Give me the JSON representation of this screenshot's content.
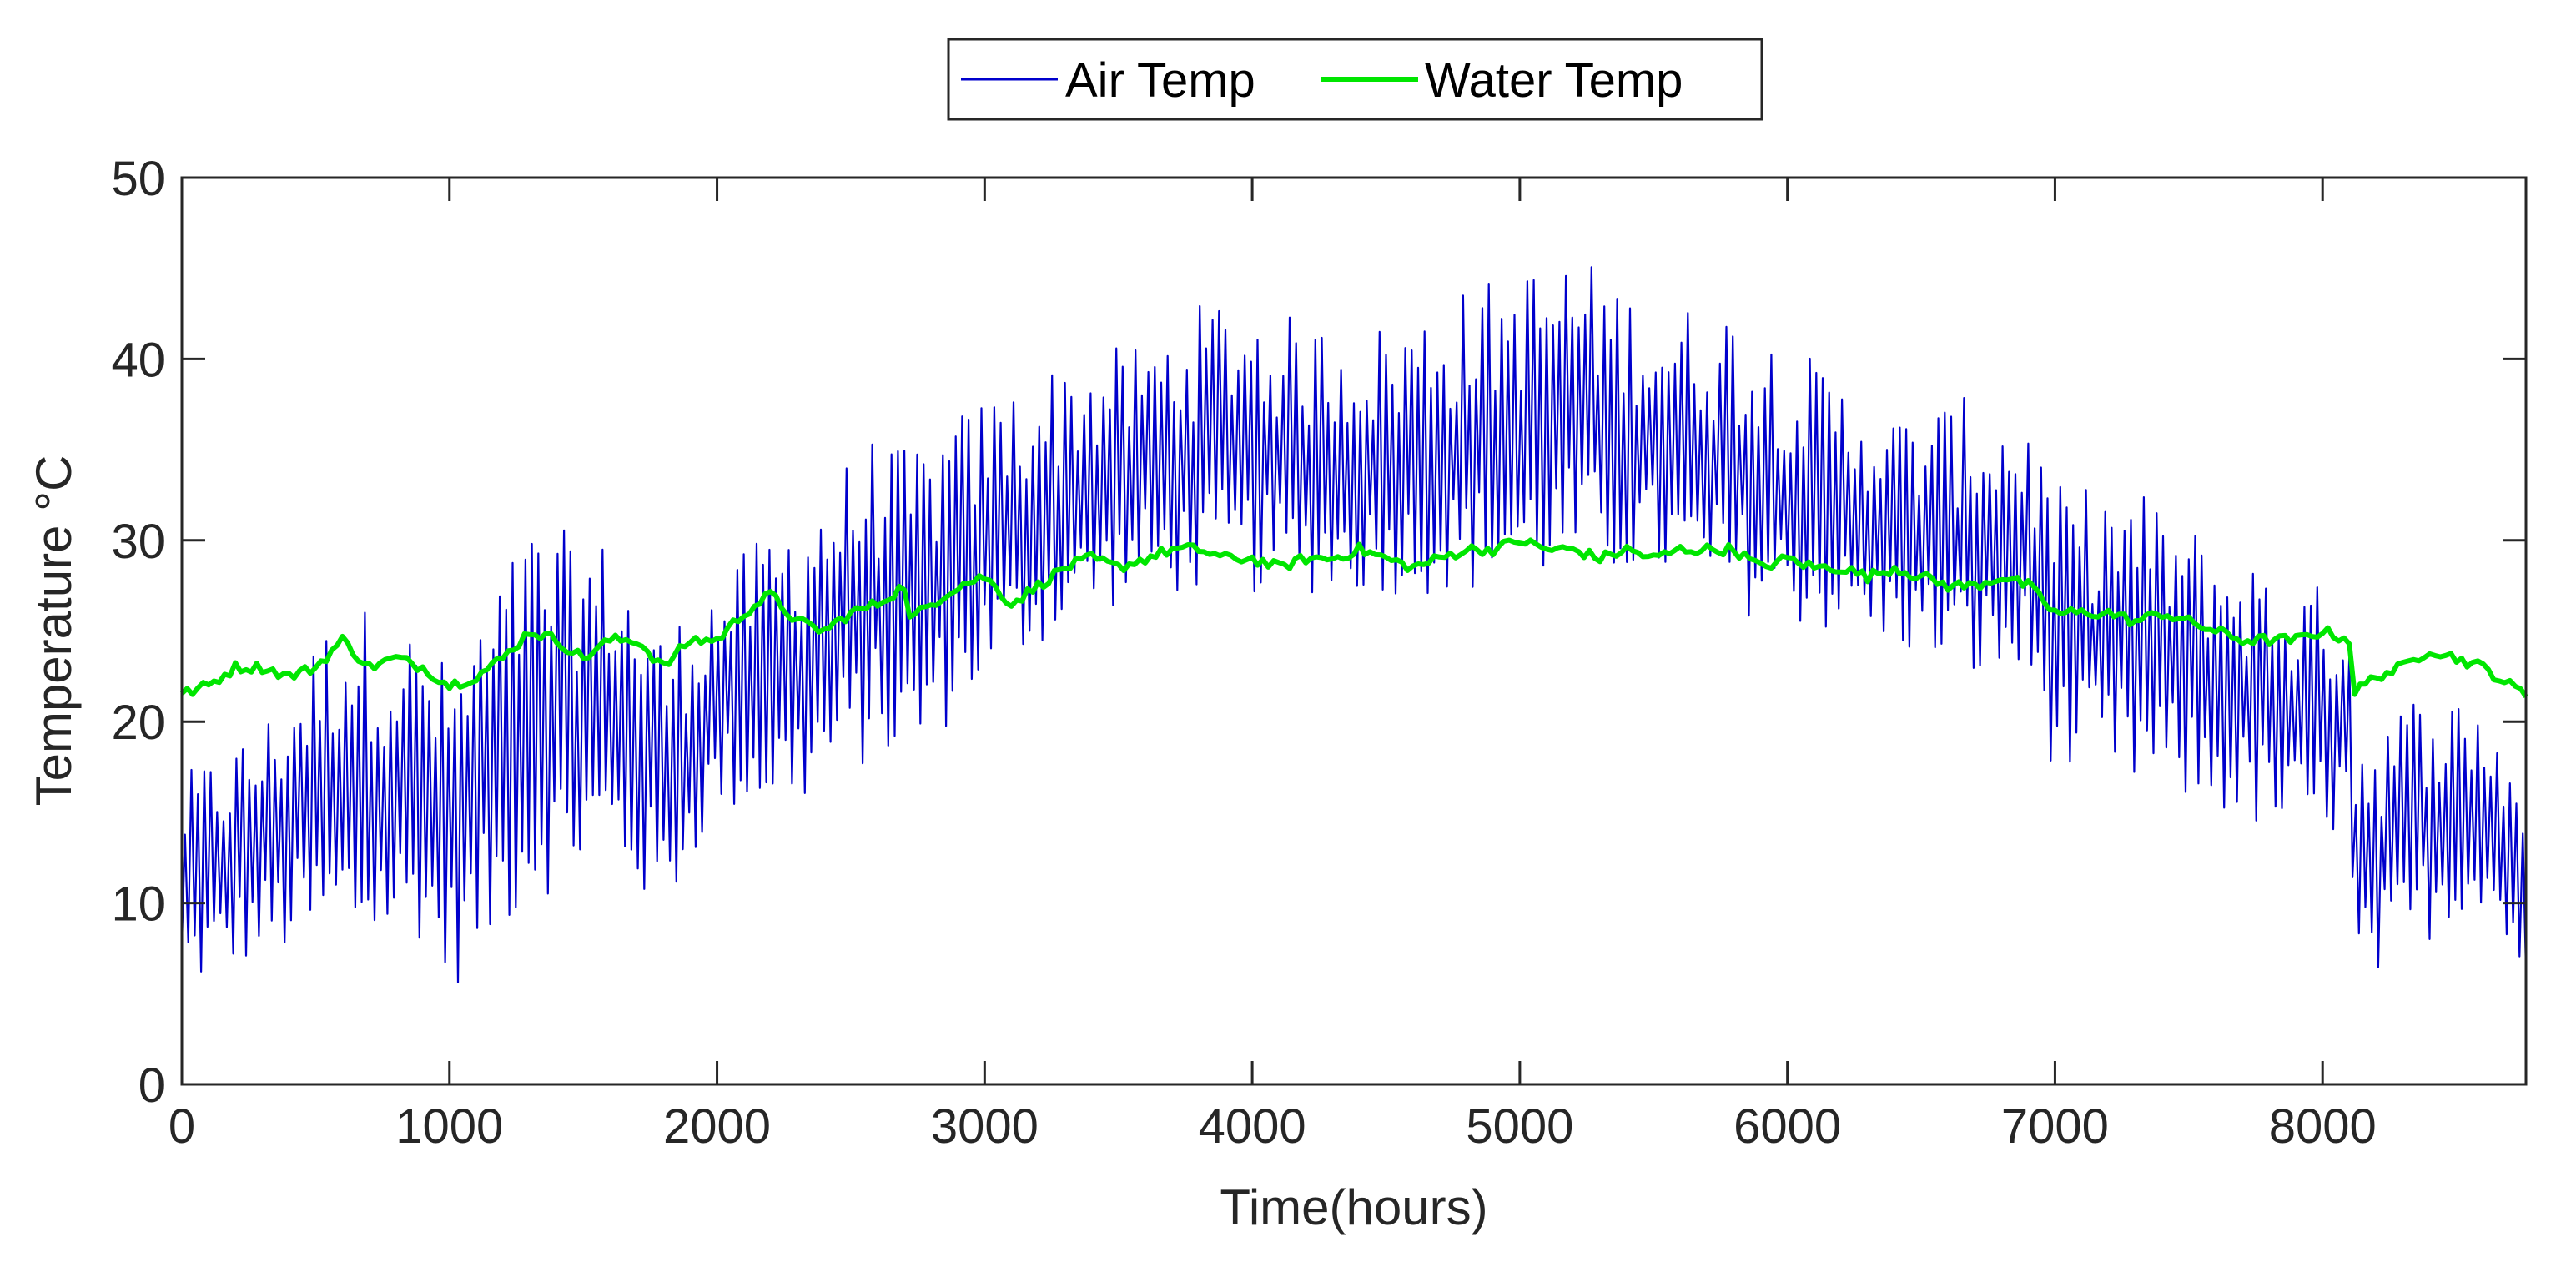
{
  "chart_data": {
    "type": "line",
    "title": "",
    "xlabel": "Time(hours)",
    "ylabel": "Temperature °C",
    "xlim": [
      0,
      8760
    ],
    "ylim": [
      0,
      50
    ],
    "xticks": [
      0,
      1000,
      2000,
      3000,
      4000,
      5000,
      6000,
      7000,
      8000
    ],
    "yticks": [
      0,
      10,
      20,
      30,
      40,
      50
    ],
    "grid": false,
    "legend_position": "top-center",
    "series": [
      {
        "name": "Air Temp",
        "color": "#0000cc",
        "style": "thin oscillating (diurnal) line",
        "envelope": {
          "x": [
            0,
            300,
            600,
            900,
            1000,
            1300,
            1600,
            1800,
            2000,
            2300,
            2600,
            2700,
            3000,
            3300,
            3600,
            3900,
            4200,
            4500,
            4800,
            5200,
            5500,
            5800,
            6100,
            6400,
            6700,
            6900,
            7000,
            7300,
            7600,
            7900,
            8100,
            8120,
            8400,
            8600,
            8760
          ],
          "low": [
            5,
            7,
            7,
            8,
            5,
            10,
            12,
            9,
            15,
            15,
            18,
            17,
            22,
            25,
            27,
            27,
            27,
            27,
            27,
            28,
            28,
            26,
            25,
            24,
            22,
            22,
            17,
            16,
            15,
            13,
            14,
            4,
            8,
            10,
            5
          ],
          "high": [
            17,
            20,
            27,
            25,
            23,
            31,
            30,
            25,
            28,
            32,
            36,
            35,
            38,
            40,
            41,
            44,
            42,
            42,
            44,
            46,
            43,
            43,
            40,
            37,
            38,
            37,
            33,
            33,
            30,
            28,
            27,
            20,
            22,
            21,
            17
          ]
        }
      },
      {
        "name": "Water Temp",
        "color": "#00e600",
        "style": "thick line",
        "x": [
          0,
          100,
          200,
          300,
          400,
          500,
          600,
          700,
          800,
          900,
          1000,
          1100,
          1200,
          1300,
          1400,
          1500,
          1600,
          1700,
          1800,
          1900,
          2000,
          2100,
          2200,
          2300,
          2400,
          2500,
          2600,
          2700,
          2710,
          2800,
          2900,
          3000,
          3100,
          3200,
          3300,
          3400,
          3500,
          3600,
          3700,
          3800,
          3900,
          4000,
          4100,
          4200,
          4300,
          4400,
          4500,
          4600,
          4700,
          4800,
          4900,
          5000,
          5100,
          5200,
          5300,
          5400,
          5500,
          5600,
          5700,
          5800,
          5900,
          6000,
          6100,
          6200,
          6300,
          6400,
          6500,
          6600,
          6700,
          6800,
          6900,
          7000,
          7100,
          7200,
          7300,
          7400,
          7500,
          7600,
          7700,
          7800,
          7900,
          8000,
          8100,
          8110,
          8200,
          8300,
          8400,
          8500,
          8600,
          8700,
          8760
        ],
        "values": [
          21.5,
          22.0,
          23.0,
          23.0,
          22.5,
          23.0,
          24.5,
          23.0,
          23.5,
          23.0,
          22.0,
          22.5,
          23.5,
          25.0,
          24.5,
          23.5,
          24.5,
          24.5,
          23.0,
          24.5,
          24.5,
          26.0,
          27.0,
          25.5,
          25.0,
          26.0,
          26.5,
          27.5,
          25.5,
          26.5,
          27.5,
          28.0,
          26.5,
          27.5,
          28.5,
          29.0,
          28.5,
          29.0,
          29.5,
          29.5,
          29.0,
          29.0,
          28.5,
          29.0,
          29.0,
          29.5,
          29.0,
          28.5,
          29.0,
          29.5,
          29.5,
          30.0,
          29.5,
          29.5,
          29.0,
          29.5,
          29.0,
          29.5,
          29.5,
          29.5,
          28.5,
          29.0,
          28.5,
          28.5,
          28.0,
          28.5,
          28.0,
          27.5,
          27.5,
          28.0,
          27.5,
          26.0,
          26.0,
          26.0,
          25.5,
          26.0,
          25.5,
          25.0,
          24.5,
          24.5,
          24.5,
          25.0,
          24.5,
          21.5,
          22.5,
          23.0,
          24.0,
          23.5,
          23.0,
          22.0,
          21.5
        ]
      }
    ]
  }
}
